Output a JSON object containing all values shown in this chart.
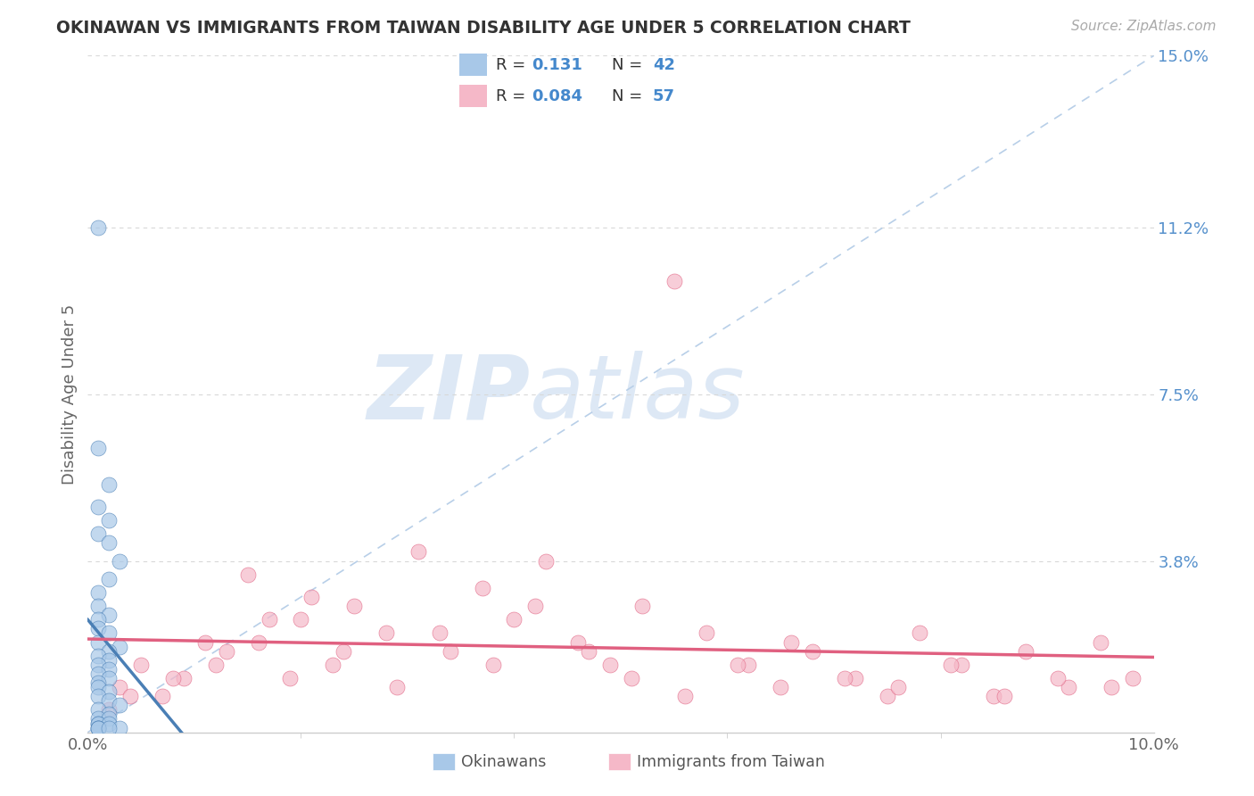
{
  "title": "OKINAWAN VS IMMIGRANTS FROM TAIWAN DISABILITY AGE UNDER 5 CORRELATION CHART",
  "source": "Source: ZipAtlas.com",
  "ylabel": "Disability Age Under 5",
  "xlim": [
    0.0,
    0.1
  ],
  "ylim": [
    0.0,
    0.15
  ],
  "right_ytick_labels": [
    "15.0%",
    "11.2%",
    "7.5%",
    "3.8%"
  ],
  "right_ytick_values": [
    0.15,
    0.112,
    0.075,
    0.038
  ],
  "blue_color": "#a8c8e8",
  "pink_color": "#f5b8c8",
  "blue_line_color": "#4a7fb5",
  "pink_line_color": "#e06080",
  "dashed_line_color": "#b8cfe8",
  "watermark_zip": "ZIP",
  "watermark_atlas": "atlas",
  "watermark_color": "#dde8f5",
  "background_color": "#ffffff",
  "grid_color": "#d8d8d8",
  "legend_box_color": "#f8f8f8",
  "legend_border_color": "#dddddd",
  "title_color": "#333333",
  "axis_text_color": "#666666",
  "right_axis_color": "#5590cc",
  "legend_r_color": "#333333",
  "legend_val_color": "#4488cc",
  "legend_n_color": "#333333",
  "legend_nval_color": "#4488cc"
}
